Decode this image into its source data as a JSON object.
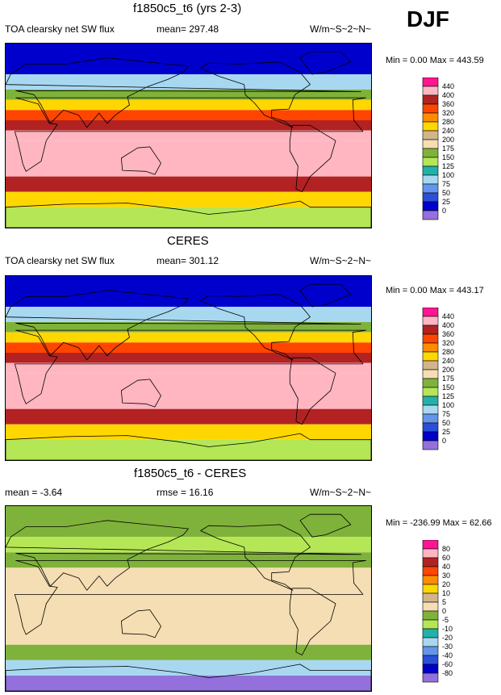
{
  "season": "DJF",
  "panels": [
    {
      "id": "model",
      "title": "f1850c5_t6 (yrs 2-3)",
      "left_label": "TOA clearsky net SW flux",
      "center_label": "mean= 297.48",
      "units": "W/m~S~2~N~",
      "minmax": "Min =   0.00 Max = 443.59",
      "levels": [
        "440",
        "400",
        "360",
        "320",
        "280",
        "240",
        "200",
        "175",
        "150",
        "125",
        "100",
        "75",
        "50",
        "25",
        "0"
      ],
      "colors": [
        "#ff1493",
        "#ffb6c1",
        "#b22222",
        "#ff4500",
        "#ff8c00",
        "#ffd700",
        "#d2b48c",
        "#f5deb3",
        "#7fb23a",
        "#b5e655",
        "#20b2aa",
        "#a7d8f0",
        "#6495ed",
        "#2a4fd8",
        "#0000cd",
        "#9370db"
      ]
    },
    {
      "id": "obs",
      "title": "CERES",
      "left_label": "TOA clearsky net SW flux",
      "center_label": "mean= 301.12",
      "units": "W/m~S~2~N~",
      "minmax": "Min =   0.00 Max = 443.17",
      "levels": [
        "440",
        "400",
        "360",
        "320",
        "280",
        "240",
        "200",
        "175",
        "150",
        "125",
        "100",
        "75",
        "50",
        "25",
        "0"
      ],
      "colors": [
        "#ff1493",
        "#ffb6c1",
        "#b22222",
        "#ff4500",
        "#ff8c00",
        "#ffd700",
        "#d2b48c",
        "#f5deb3",
        "#7fb23a",
        "#b5e655",
        "#20b2aa",
        "#a7d8f0",
        "#6495ed",
        "#2a4fd8",
        "#0000cd",
        "#9370db"
      ]
    },
    {
      "id": "diff",
      "title": "f1850c5_t6 - CERES",
      "left_label": "mean =  -3.64",
      "center_label": "rmse =  16.16",
      "units": "W/m~S~2~N~",
      "minmax": "Min = -236.99 Max =  62.66",
      "levels": [
        "80",
        "60",
        "40",
        "30",
        "20",
        "10",
        "5",
        "0",
        "-5",
        "-10",
        "-20",
        "-30",
        "-40",
        "-60",
        "-80"
      ],
      "colors": [
        "#ff1493",
        "#ffb6c1",
        "#b22222",
        "#ff4500",
        "#ff8c00",
        "#ffd700",
        "#d2b48c",
        "#f5deb3",
        "#7fb23a",
        "#b5e655",
        "#20b2aa",
        "#a7d8f0",
        "#6495ed",
        "#2a4fd8",
        "#0000cd",
        "#9370db"
      ]
    }
  ],
  "chart_data": [
    {
      "type": "heatmap",
      "title": "f1850c5_t6 (yrs 2-3)",
      "variable": "TOA clearsky net SW flux",
      "units": "W/m~S~2~N~",
      "mean": 297.48,
      "min": 0.0,
      "max": 443.59,
      "contour_levels": [
        0,
        25,
        50,
        75,
        100,
        125,
        150,
        175,
        200,
        240,
        280,
        320,
        360,
        400,
        440
      ],
      "latitude_bands": [
        {
          "lat": [
            60,
            90
          ],
          "value": 15
        },
        {
          "lat": [
            45,
            60
          ],
          "value": 80
        },
        {
          "lat": [
            35,
            45
          ],
          "value": 170
        },
        {
          "lat": [
            25,
            35
          ],
          "value": 250
        },
        {
          "lat": [
            15,
            25
          ],
          "value": 330
        },
        {
          "lat": [
            5,
            15
          ],
          "value": 370
        },
        {
          "lat": [
            -5,
            5
          ],
          "value": 410
        },
        {
          "lat": [
            -40,
            -5
          ],
          "value": 420
        },
        {
          "lat": [
            -55,
            -40
          ],
          "value": 380
        },
        {
          "lat": [
            -70,
            -55
          ],
          "value": 260
        },
        {
          "lat": [
            -90,
            -70
          ],
          "value": 140
        }
      ]
    },
    {
      "type": "heatmap",
      "title": "CERES",
      "variable": "TOA clearsky net SW flux",
      "units": "W/m~S~2~N~",
      "mean": 301.12,
      "min": 0.0,
      "max": 443.17,
      "contour_levels": [
        0,
        25,
        50,
        75,
        100,
        125,
        150,
        175,
        200,
        240,
        280,
        320,
        360,
        400,
        440
      ],
      "latitude_bands": [
        {
          "lat": [
            60,
            90
          ],
          "value": 15
        },
        {
          "lat": [
            45,
            60
          ],
          "value": 80
        },
        {
          "lat": [
            35,
            45
          ],
          "value": 170
        },
        {
          "lat": [
            25,
            35
          ],
          "value": 250
        },
        {
          "lat": [
            15,
            25
          ],
          "value": 330
        },
        {
          "lat": [
            5,
            15
          ],
          "value": 370
        },
        {
          "lat": [
            -5,
            5
          ],
          "value": 410
        },
        {
          "lat": [
            -40,
            -5
          ],
          "value": 425
        },
        {
          "lat": [
            -55,
            -40
          ],
          "value": 380
        },
        {
          "lat": [
            -70,
            -55
          ],
          "value": 260
        },
        {
          "lat": [
            -90,
            -70
          ],
          "value": 140
        }
      ]
    },
    {
      "type": "heatmap",
      "title": "f1850c5_t6 - CERES",
      "variable": "difference",
      "units": "W/m~S~2~N~",
      "mean": -3.64,
      "rmse": 16.16,
      "min": -236.99,
      "max": 62.66,
      "contour_levels": [
        -80,
        -60,
        -40,
        -30,
        -20,
        -10,
        -5,
        0,
        5,
        10,
        20,
        30,
        40,
        60,
        80
      ],
      "latitude_bands": [
        {
          "lat": [
            60,
            90
          ],
          "value": -3
        },
        {
          "lat": [
            45,
            60
          ],
          "value": -7
        },
        {
          "lat": [
            30,
            45
          ],
          "value": -2
        },
        {
          "lat": [
            0,
            30
          ],
          "value": 2
        },
        {
          "lat": [
            -45,
            0
          ],
          "value": 3
        },
        {
          "lat": [
            -60,
            -45
          ],
          "value": -4
        },
        {
          "lat": [
            -75,
            -60
          ],
          "value": -30
        },
        {
          "lat": [
            -90,
            -75
          ],
          "value": -85
        }
      ]
    }
  ]
}
